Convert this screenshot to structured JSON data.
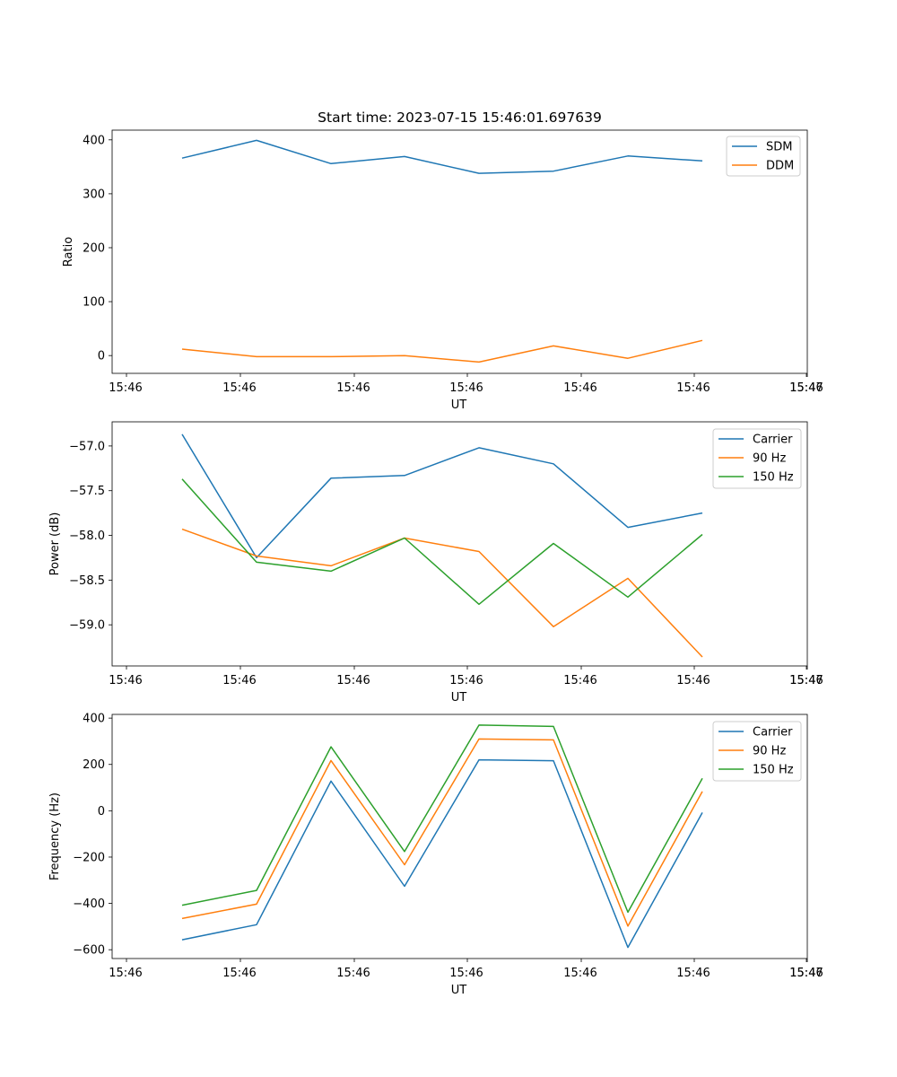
{
  "chart_data": [
    {
      "type": "line",
      "title": "Start time: 2023-07-15 15:46:01.697639",
      "xlabel": "UT",
      "ylabel": "Ratio",
      "x_tick_labels": [
        "15:46",
        "15:46",
        "15:46",
        "15:46",
        "15:46",
        "15:46",
        "15:46",
        "15:47"
      ],
      "ylim": [
        -33,
        418
      ],
      "y_ticks": [
        0,
        100,
        200,
        300,
        400
      ],
      "y_tick_labels": [
        "0",
        "100",
        "200",
        "300",
        "400"
      ],
      "legend_position": "top-right",
      "series": [
        {
          "name": "SDM",
          "color": "#1f77b4",
          "values": [
            366,
            399,
            356,
            369,
            338,
            342,
            370,
            361
          ]
        },
        {
          "name": "DDM",
          "color": "#ff7f0e",
          "values": [
            12,
            -2,
            -2,
            0,
            -12,
            18,
            -5,
            28
          ]
        }
      ]
    },
    {
      "type": "line",
      "title": "",
      "xlabel": "UT",
      "ylabel": "Power (dB)",
      "x_tick_labels": [
        "15:46",
        "15:46",
        "15:46",
        "15:46",
        "15:46",
        "15:46",
        "15:46",
        "15:47"
      ],
      "ylim": [
        -59.46,
        -56.73
      ],
      "y_ticks": [
        -57.0,
        -57.5,
        -58.0,
        -58.5,
        -59.0
      ],
      "y_tick_labels": [
        "−57.0",
        "−57.5",
        "−58.0",
        "−58.5",
        "−59.0"
      ],
      "legend_position": "top-right",
      "series": [
        {
          "name": "Carrier",
          "color": "#1f77b4",
          "values": [
            -56.87,
            -58.25,
            -57.36,
            -57.33,
            -57.02,
            -57.2,
            -57.91,
            -57.75
          ]
        },
        {
          "name": "90 Hz",
          "color": "#ff7f0e",
          "values": [
            -57.93,
            -58.23,
            -58.34,
            -58.03,
            -58.18,
            -59.02,
            -58.48,
            -59.36
          ]
        },
        {
          "name": "150 Hz",
          "color": "#2ca02c",
          "values": [
            -57.37,
            -58.3,
            -58.4,
            -58.03,
            -58.77,
            -58.09,
            -58.69,
            -57.99
          ]
        }
      ]
    },
    {
      "type": "line",
      "title": "",
      "xlabel": "UT",
      "ylabel": "Frequency (Hz)",
      "x_tick_labels": [
        "15:46",
        "15:46",
        "15:46",
        "15:46",
        "15:46",
        "15:46",
        "15:46",
        "15:47"
      ],
      "ylim": [
        -638,
        416
      ],
      "y_ticks": [
        400,
        200,
        0,
        -200,
        -400,
        -600
      ],
      "y_tick_labels": [
        "400",
        "200",
        "0",
        "−200",
        "−400",
        "−600"
      ],
      "legend_position": "top-right",
      "series": [
        {
          "name": "Carrier",
          "color": "#1f77b4",
          "values": [
            -557,
            -492,
            128,
            -326,
            220,
            216,
            -590,
            -8
          ]
        },
        {
          "name": "90 Hz",
          "color": "#ff7f0e",
          "values": [
            -465,
            -403,
            217,
            -233,
            310,
            306,
            -498,
            83
          ]
        },
        {
          "name": "150 Hz",
          "color": "#2ca02c",
          "values": [
            -408,
            -344,
            276,
            -176,
            370,
            364,
            -438,
            140
          ]
        }
      ]
    }
  ]
}
